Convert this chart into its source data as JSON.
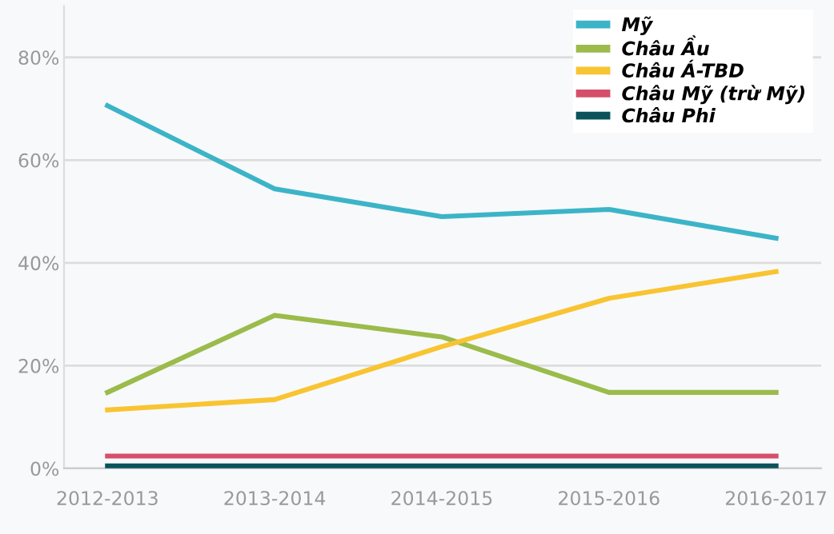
{
  "chart_data": {
    "type": "line",
    "categories": [
      "2012-2013",
      "2013-2014",
      "2014-2015",
      "2015-2016",
      "2016-2017"
    ],
    "series": [
      {
        "name": "Mỹ",
        "color": "#3cb4c8",
        "values": [
          70.6,
          54.4,
          49,
          50.4,
          44.8
        ]
      },
      {
        "name": "Châu Ầu",
        "color": "#9bbb4b",
        "values": [
          14.8,
          29.8,
          25.6,
          14.8,
          14.8
        ]
      },
      {
        "name": "Châu Á-TBD",
        "color": "#f8c431",
        "values": [
          11.4,
          13.4,
          23.7,
          33.1,
          38.3
        ]
      },
      {
        "name": "Châu Mỹ (trừ Mỹ)",
        "color": "#d64f6a",
        "values": [
          2.4,
          2.4,
          2.4,
          2.4,
          2.4
        ]
      },
      {
        "name": "Châu Phi",
        "color": "#0b525a",
        "values": [
          0.5,
          0.5,
          0.5,
          0.5,
          0.5
        ]
      }
    ],
    "ylim": [
      0,
      90
    ],
    "yticks": [
      {
        "value": 0,
        "label": "0%"
      },
      {
        "value": 20,
        "label": "20%"
      },
      {
        "value": 40,
        "label": "40%"
      },
      {
        "value": 60,
        "label": "60%"
      },
      {
        "value": 80,
        "label": "80%"
      }
    ],
    "grid": "y",
    "legend": "top right",
    "marker": "none",
    "line_style": "solid"
  }
}
